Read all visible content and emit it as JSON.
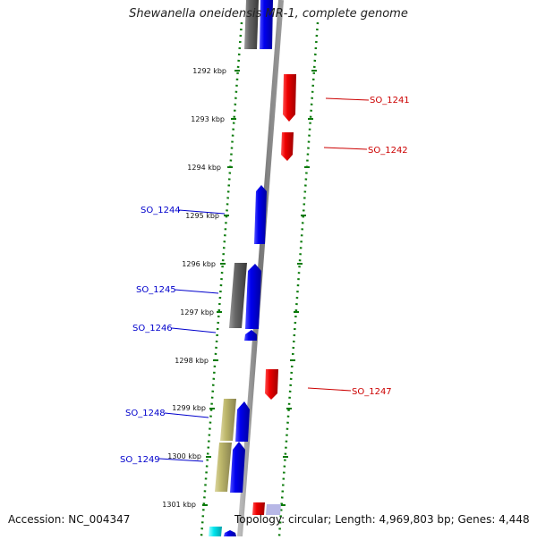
{
  "title": "Shewanella oneidensis MR-1, complete genome",
  "footer": {
    "accession": "Accession: NC_004347",
    "topology": "Topology: circular; Length: 4,969,803 bp; Genes: 4,448"
  },
  "colors": {
    "forward_gene": "#0000ee",
    "reverse_gene": "#ee0000",
    "other_gene": "#666666",
    "khaki_gene": "#bdb76b",
    "cyan_gene": "#00e5ee",
    "backbone": "#888888",
    "ruler": "#0a7a0a",
    "forward_label": "#0000cc",
    "reverse_label": "#cc0000"
  },
  "ticks": [
    "1292 kbp",
    "1293 kbp",
    "1294 kbp",
    "1295 kbp",
    "1296 kbp",
    "1297 kbp",
    "1298 kbp",
    "1299 kbp",
    "1300 kbp",
    "1301 kbp"
  ],
  "gene_labels": {
    "left": [
      "SO_1244",
      "SO_1245",
      "SO_1246",
      "SO_1248",
      "SO_1249"
    ],
    "right": [
      "SO_1241",
      "SO_1242",
      "SO_1247"
    ]
  }
}
